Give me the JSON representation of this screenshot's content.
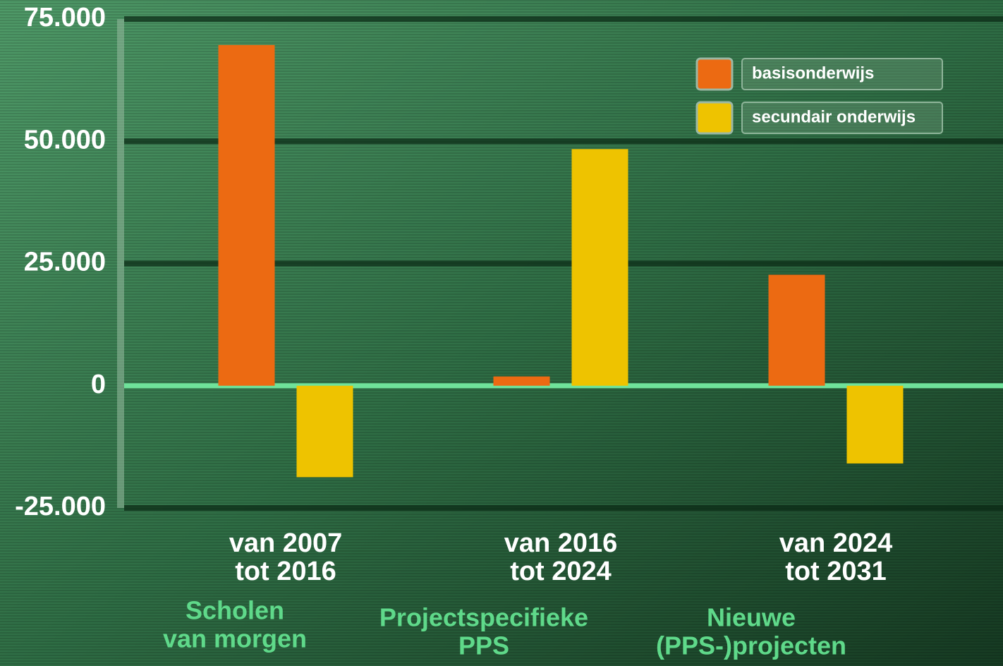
{
  "chart_data": {
    "type": "bar",
    "categories": [
      [
        "van 2007",
        "tot 2016"
      ],
      [
        "van 2016",
        "tot 2024"
      ],
      [
        "van 2024",
        "tot 2031"
      ]
    ],
    "programs": [
      [
        "Scholen",
        "van morgen"
      ],
      [
        "Projectspecifieke",
        "PPS"
      ],
      [
        "Nieuwe",
        "(PPS-)projecten"
      ]
    ],
    "series": [
      {
        "name": "basisonderwijs",
        "color": "#ec6a12",
        "values": [
          69700,
          1900,
          22700
        ]
      },
      {
        "name": "secundair onderwijs",
        "color": "#eec300",
        "values": [
          -18700,
          48400,
          -15900
        ]
      }
    ],
    "ylim": [
      -25000,
      75000
    ],
    "yticks": [
      {
        "value": -25000,
        "label": "-25.000"
      },
      0,
      {
        "value": 25000,
        "label": "25.000"
      },
      {
        "value": 50000,
        "label": "50.000"
      },
      {
        "value": 75000,
        "label": "75.000"
      }
    ],
    "grid": true,
    "legend": "top-right"
  }
}
